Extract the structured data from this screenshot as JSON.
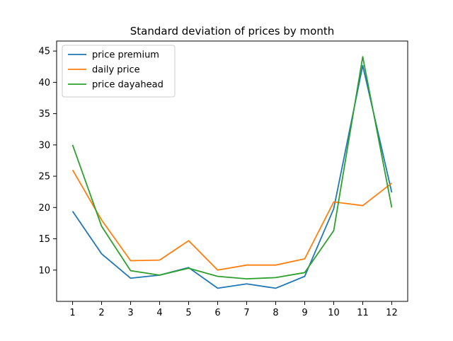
{
  "chart_data": {
    "type": "line",
    "title": "Standard deviation of prices by month",
    "xlabel": "",
    "ylabel": "",
    "x": [
      1,
      2,
      3,
      4,
      5,
      6,
      7,
      8,
      9,
      10,
      11,
      12
    ],
    "x_ticks": [
      "1",
      "2",
      "3",
      "4",
      "5",
      "6",
      "7",
      "8",
      "9",
      "10",
      "11",
      "12"
    ],
    "y_ticks": [
      10,
      15,
      20,
      25,
      30,
      35,
      40,
      45
    ],
    "xlim": [
      0.45,
      12.55
    ],
    "ylim": [
      5.0,
      46.6
    ],
    "grid": false,
    "legend_position": "upper-left",
    "series": [
      {
        "name": "price premium",
        "color": "#1f77b4",
        "values": [
          19.4,
          12.6,
          8.7,
          9.2,
          10.4,
          7.1,
          7.8,
          7.1,
          9.0,
          19.8,
          42.7,
          22.4
        ]
      },
      {
        "name": "daily price",
        "color": "#ff7f0e",
        "values": [
          26.0,
          18.0,
          11.5,
          11.6,
          14.7,
          10.0,
          10.8,
          10.8,
          11.8,
          20.9,
          20.3,
          23.9
        ]
      },
      {
        "name": "price dayahead",
        "color": "#2ca02c",
        "values": [
          30.0,
          17.0,
          9.9,
          9.2,
          10.3,
          9.0,
          8.6,
          8.8,
          9.6,
          16.3,
          44.1,
          20.0
        ]
      }
    ]
  }
}
